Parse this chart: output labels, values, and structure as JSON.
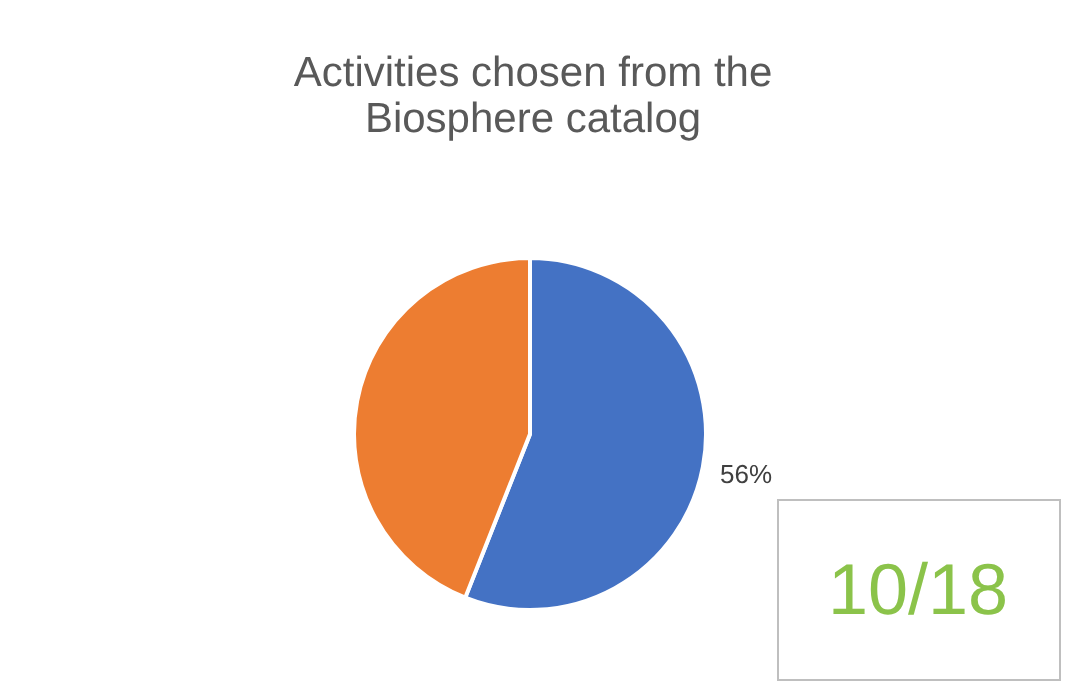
{
  "chart_data": {
    "type": "pie",
    "title": "Activities chosen from the Biosphere catalog",
    "categories": [
      null,
      null
    ],
    "values": [
      56,
      44
    ],
    "colors": [
      "#4472c4",
      "#ed7d31"
    ],
    "value_labels": [
      "56%",
      null
    ],
    "legend": false,
    "annotations": [
      "10/18"
    ]
  }
}
